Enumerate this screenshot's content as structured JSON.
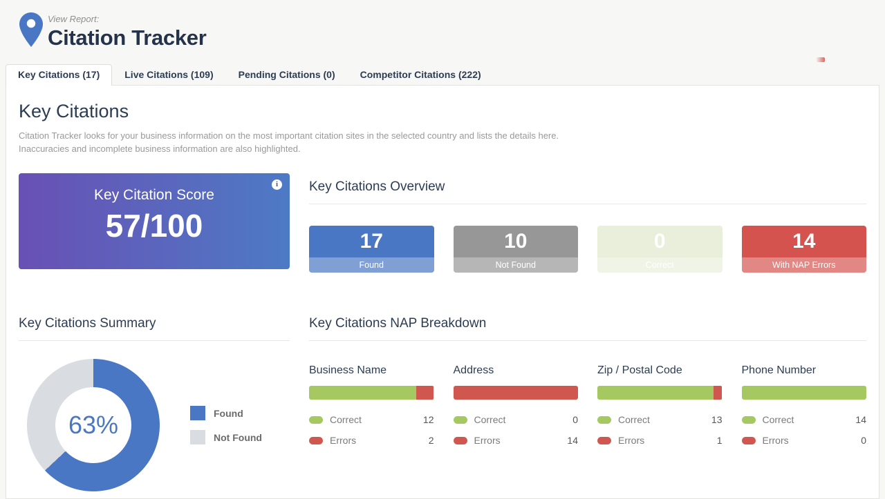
{
  "header": {
    "eyebrow": "View Report:",
    "title": "Citation Tracker",
    "pin_color": "#4a77c3"
  },
  "tabs": [
    {
      "label": "Key Citations (17)",
      "active": true
    },
    {
      "label": "Live Citations (109)",
      "active": false
    },
    {
      "label": "Pending Citations (0)",
      "active": false
    },
    {
      "label": "Competitor Citations (222)",
      "active": false
    }
  ],
  "content": {
    "heading": "Key Citations",
    "description": "Citation Tracker looks for your business information on the most important citation sites in the selected country and lists the details here. Inaccuracies and incomplete business information are also highlighted.",
    "score_card": {
      "label": "Key Citation Score",
      "value": "57/100",
      "gradient_from": "#6950b4",
      "gradient_to": "#4d7ac5",
      "info_glyph": "i"
    },
    "overview": {
      "heading": "Key Citations Overview",
      "stats": [
        {
          "value": "17",
          "label": "Found",
          "color": "#4a77c3"
        },
        {
          "value": "10",
          "label": "Not Found",
          "color": "#979797"
        },
        {
          "value": "0",
          "label": "Correct",
          "color": "#e9efdb"
        },
        {
          "value": "14",
          "label": "With NAP Errors",
          "color": "#d5534f"
        }
      ]
    },
    "summary": {
      "heading": "Key Citations Summary",
      "percent_label": "63%",
      "legend": [
        {
          "label": "Found",
          "color": "#4a77c3"
        },
        {
          "label": "Not Found",
          "color": "#d9dce0"
        }
      ]
    },
    "nap": {
      "heading": "Key Citations NAP Breakdown",
      "correct_color": "#a5c860",
      "error_color": "#d0574f",
      "columns": [
        {
          "title": "Business Name",
          "correct_label": "Correct",
          "errors_label": "Errors",
          "correct": 12,
          "errors": 2
        },
        {
          "title": "Address",
          "correct_label": "Correct",
          "errors_label": "Errors",
          "correct": 0,
          "errors": 14
        },
        {
          "title": "Zip / Postal Code",
          "correct_label": "Correct",
          "errors_label": "Errors",
          "correct": 13,
          "errors": 1
        },
        {
          "title": "Phone Number",
          "correct_label": "Correct",
          "errors_label": "Errors",
          "correct": 14,
          "errors": 0
        }
      ]
    }
  },
  "chart_data": [
    {
      "type": "pie",
      "title": "Key Citations Summary",
      "labels": [
        "Found",
        "Not Found"
      ],
      "values": [
        63,
        37
      ],
      "unit": "percent",
      "center_label": "63%",
      "colors": [
        "#4a77c3",
        "#d9dce0"
      ],
      "donut": true,
      "legend_position": "right"
    },
    {
      "type": "bar",
      "title": "Key Citations NAP Breakdown",
      "categories": [
        "Business Name",
        "Address",
        "Zip / Postal Code",
        "Phone Number"
      ],
      "series": [
        {
          "name": "Correct",
          "values": [
            12,
            0,
            13,
            14
          ],
          "color": "#a5c860"
        },
        {
          "name": "Errors",
          "values": [
            2,
            14,
            1,
            0
          ],
          "color": "#d0574f"
        }
      ],
      "stacked": true,
      "orientation": "horizontal",
      "value_max_per_category": 14
    }
  ]
}
